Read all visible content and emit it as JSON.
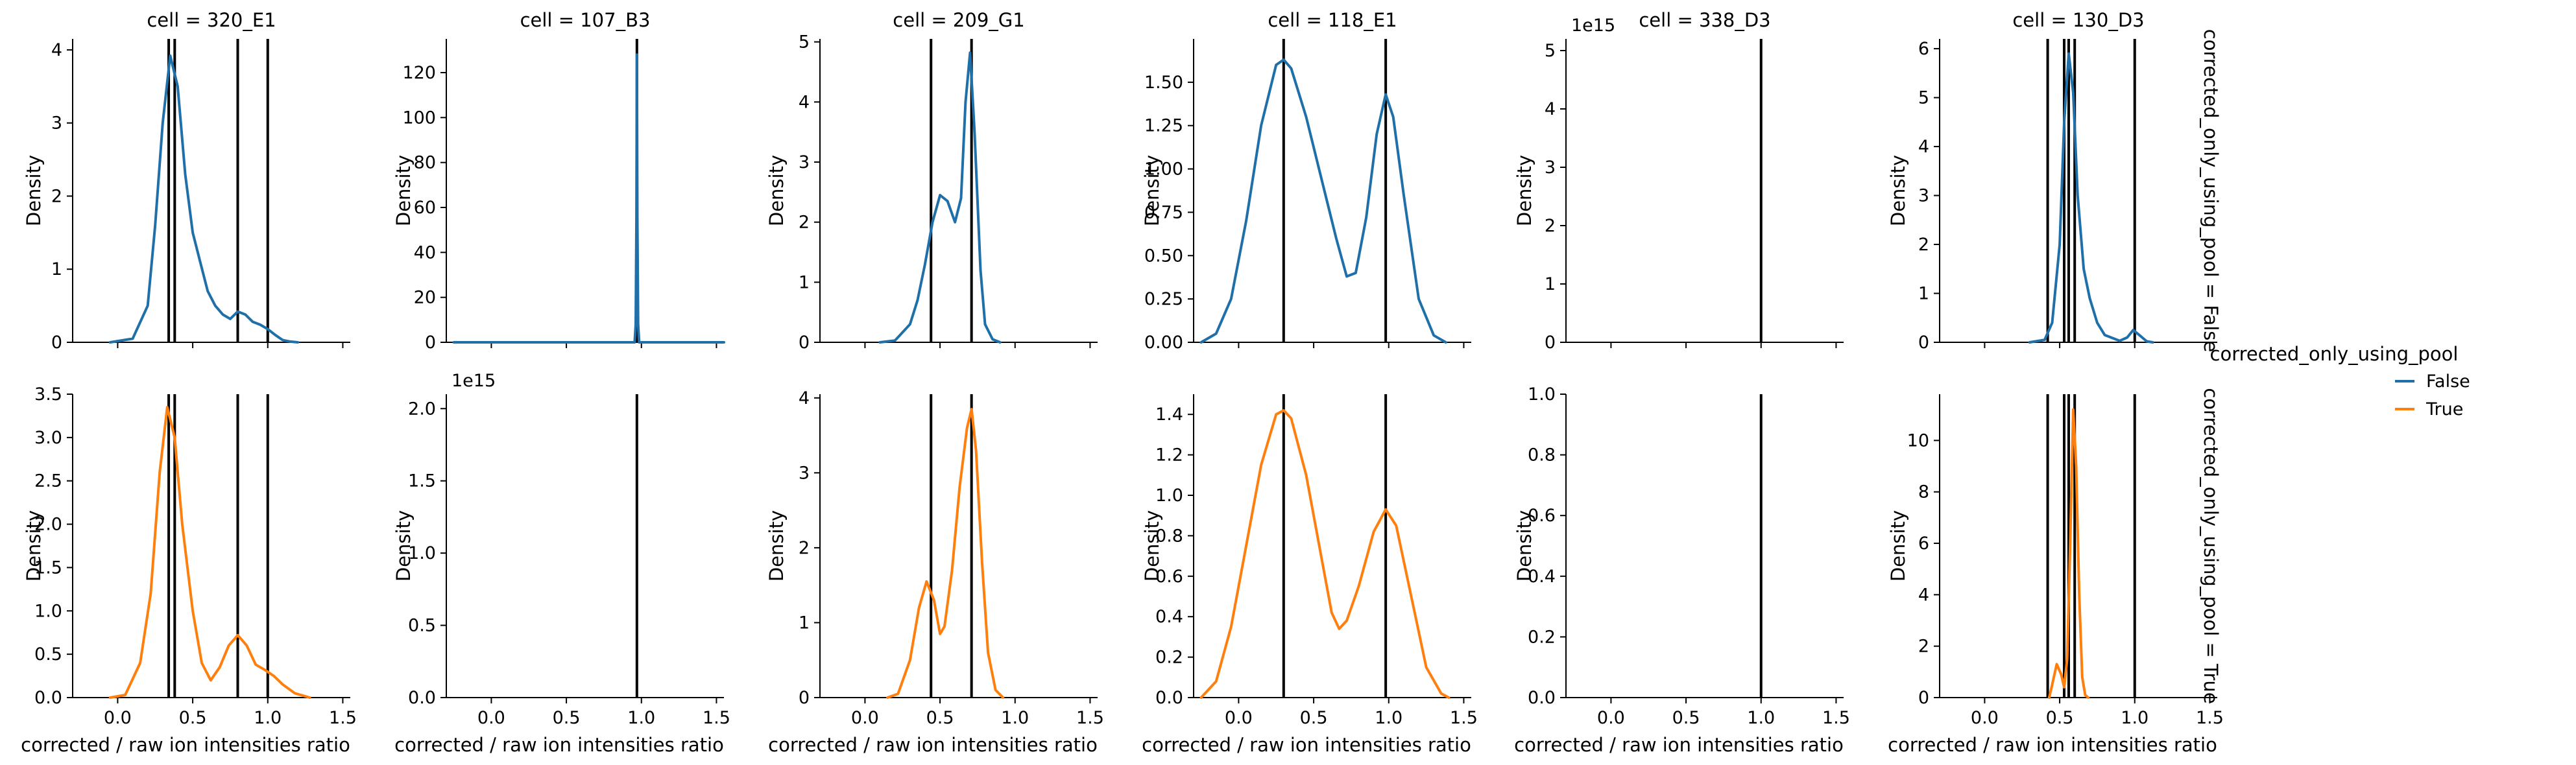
{
  "chart_data": {
    "type": "kde-facet-grid",
    "xlabel": "corrected / raw ion intensities ratio",
    "ylabel": "Density",
    "xlim": [
      -0.3,
      1.55
    ],
    "x_ticks": [
      0.0,
      0.5,
      1.0,
      1.5
    ],
    "x_tick_labels": [
      "0.0",
      "0.5",
      "1.0",
      "1.5"
    ],
    "row_labels": [
      "corrected_only_using_pool = False",
      "corrected_only_using_pool = True"
    ],
    "legend": {
      "title": "corrected_only_using_pool",
      "entries": [
        {
          "label": "False",
          "color": "#1f6fa8"
        },
        {
          "label": "True",
          "color": "#ff7f0e"
        }
      ]
    },
    "colors": {
      "False": "#1f6fa8",
      "True": "#ff7f0e",
      "vline": "#000000"
    },
    "panels": [
      {
        "row": 0,
        "col": 0,
        "title": "cell = 320_E1",
        "series": "False",
        "ylim": [
          0,
          4.15
        ],
        "y_ticks": [
          0,
          1,
          2,
          3,
          4
        ],
        "y_tick_labels": [
          "0",
          "1",
          "2",
          "3",
          "4"
        ],
        "vlines": [
          0.34,
          0.38,
          0.8,
          1.0
        ],
        "kde": [
          [
            -0.05,
            0
          ],
          [
            0.1,
            0.05
          ],
          [
            0.2,
            0.5
          ],
          [
            0.25,
            1.6
          ],
          [
            0.3,
            3.0
          ],
          [
            0.35,
            3.92
          ],
          [
            0.4,
            3.5
          ],
          [
            0.45,
            2.3
          ],
          [
            0.5,
            1.5
          ],
          [
            0.55,
            1.1
          ],
          [
            0.6,
            0.7
          ],
          [
            0.65,
            0.5
          ],
          [
            0.7,
            0.38
          ],
          [
            0.75,
            0.32
          ],
          [
            0.8,
            0.42
          ],
          [
            0.85,
            0.38
          ],
          [
            0.9,
            0.28
          ],
          [
            0.95,
            0.24
          ],
          [
            1.0,
            0.18
          ],
          [
            1.05,
            0.1
          ],
          [
            1.1,
            0.03
          ],
          [
            1.15,
            0.01
          ],
          [
            1.2,
            0
          ]
        ]
      },
      {
        "row": 0,
        "col": 1,
        "title": "cell = 107_B3",
        "series": "False",
        "ylim": [
          0,
          135
        ],
        "y_ticks": [
          0,
          20,
          40,
          60,
          80,
          100,
          120
        ],
        "y_tick_labels": [
          "0",
          "20",
          "40",
          "60",
          "80",
          "100",
          "120"
        ],
        "vlines": [
          0.97
        ],
        "kde": [
          [
            -0.25,
            0
          ],
          [
            0.955,
            0
          ],
          [
            0.962,
            8
          ],
          [
            0.967,
            55
          ],
          [
            0.97,
            128
          ],
          [
            0.973,
            55
          ],
          [
            0.978,
            8
          ],
          [
            0.985,
            0
          ],
          [
            1.55,
            0
          ]
        ]
      },
      {
        "row": 0,
        "col": 2,
        "title": "cell = 209_G1",
        "series": "False",
        "ylim": [
          0,
          5.05
        ],
        "y_ticks": [
          0,
          1,
          2,
          3,
          4,
          5
        ],
        "y_tick_labels": [
          "0",
          "1",
          "2",
          "3",
          "4",
          "5"
        ],
        "vlines": [
          0.44,
          0.71
        ],
        "kde": [
          [
            0.1,
            0
          ],
          [
            0.2,
            0.03
          ],
          [
            0.3,
            0.3
          ],
          [
            0.35,
            0.7
          ],
          [
            0.4,
            1.3
          ],
          [
            0.45,
            2.0
          ],
          [
            0.5,
            2.45
          ],
          [
            0.55,
            2.35
          ],
          [
            0.6,
            2.0
          ],
          [
            0.64,
            2.4
          ],
          [
            0.67,
            4.0
          ],
          [
            0.7,
            4.82
          ],
          [
            0.73,
            3.5
          ],
          [
            0.77,
            1.2
          ],
          [
            0.8,
            0.3
          ],
          [
            0.85,
            0.05
          ],
          [
            0.9,
            0
          ]
        ]
      },
      {
        "row": 0,
        "col": 3,
        "title": "cell = 118_E1",
        "series": "False",
        "ylim": [
          0,
          1.75
        ],
        "y_ticks": [
          0,
          0.25,
          0.5,
          0.75,
          1.0,
          1.25,
          1.5
        ],
        "y_tick_labels": [
          "0.00",
          "0.25",
          "0.50",
          "0.75",
          "1.00",
          "1.25",
          "1.50"
        ],
        "vlines": [
          0.3,
          0.98
        ],
        "kde": [
          [
            -0.25,
            0
          ],
          [
            -0.15,
            0.05
          ],
          [
            -0.05,
            0.25
          ],
          [
            0.05,
            0.7
          ],
          [
            0.15,
            1.25
          ],
          [
            0.25,
            1.6
          ],
          [
            0.3,
            1.63
          ],
          [
            0.35,
            1.58
          ],
          [
            0.45,
            1.3
          ],
          [
            0.55,
            0.95
          ],
          [
            0.65,
            0.6
          ],
          [
            0.72,
            0.38
          ],
          [
            0.78,
            0.4
          ],
          [
            0.85,
            0.72
          ],
          [
            0.92,
            1.2
          ],
          [
            0.98,
            1.43
          ],
          [
            1.03,
            1.3
          ],
          [
            1.1,
            0.85
          ],
          [
            1.2,
            0.25
          ],
          [
            1.3,
            0.04
          ],
          [
            1.38,
            0
          ]
        ]
      },
      {
        "row": 0,
        "col": 4,
        "title": "cell = 338_D3",
        "series": "False",
        "ylim": [
          0,
          5.2
        ],
        "y_ticks": [
          0,
          1,
          2,
          3,
          4,
          5
        ],
        "y_tick_labels": [
          "0",
          "1",
          "2",
          "3",
          "4",
          "5"
        ],
        "offset_label": "1e15",
        "vlines": [
          1.0
        ],
        "kde": []
      },
      {
        "row": 0,
        "col": 5,
        "title": "cell = 130_D3",
        "series": "False",
        "ylim": [
          0,
          6.2
        ],
        "y_ticks": [
          0,
          1,
          2,
          3,
          4,
          5,
          6
        ],
        "y_tick_labels": [
          "0",
          "1",
          "2",
          "3",
          "4",
          "5",
          "6"
        ],
        "vlines": [
          0.42,
          0.53,
          0.56,
          0.6,
          1.0
        ],
        "kde": [
          [
            0.3,
            0
          ],
          [
            0.4,
            0.05
          ],
          [
            0.45,
            0.4
          ],
          [
            0.5,
            2.0
          ],
          [
            0.53,
            4.5
          ],
          [
            0.56,
            5.9
          ],
          [
            0.59,
            5.1
          ],
          [
            0.62,
            3.0
          ],
          [
            0.66,
            1.5
          ],
          [
            0.7,
            0.9
          ],
          [
            0.75,
            0.4
          ],
          [
            0.8,
            0.15
          ],
          [
            0.9,
            0.03
          ],
          [
            0.95,
            0.1
          ],
          [
            0.99,
            0.25
          ],
          [
            1.03,
            0.15
          ],
          [
            1.08,
            0.02
          ],
          [
            1.12,
            0
          ]
        ]
      },
      {
        "row": 1,
        "col": 0,
        "title": "",
        "series": "True",
        "ylim": [
          0,
          3.5
        ],
        "y_ticks": [
          0,
          0.5,
          1.0,
          1.5,
          2.0,
          2.5,
          3.0,
          3.5
        ],
        "y_tick_labels": [
          "0.0",
          "0.5",
          "1.0",
          "1.5",
          "2.0",
          "2.5",
          "3.0",
          "3.5"
        ],
        "vlines": [
          0.34,
          0.38,
          0.8,
          1.0
        ],
        "kde": [
          [
            -0.05,
            0
          ],
          [
            0.05,
            0.03
          ],
          [
            0.15,
            0.4
          ],
          [
            0.22,
            1.2
          ],
          [
            0.28,
            2.6
          ],
          [
            0.33,
            3.35
          ],
          [
            0.38,
            3.0
          ],
          [
            0.43,
            2.0
          ],
          [
            0.5,
            1.0
          ],
          [
            0.56,
            0.4
          ],
          [
            0.62,
            0.2
          ],
          [
            0.68,
            0.35
          ],
          [
            0.74,
            0.6
          ],
          [
            0.8,
            0.72
          ],
          [
            0.86,
            0.6
          ],
          [
            0.92,
            0.38
          ],
          [
            0.98,
            0.32
          ],
          [
            1.04,
            0.25
          ],
          [
            1.1,
            0.15
          ],
          [
            1.18,
            0.05
          ],
          [
            1.28,
            0
          ]
        ]
      },
      {
        "row": 1,
        "col": 1,
        "title": "",
        "series": "True",
        "ylim": [
          0,
          2.1
        ],
        "y_ticks": [
          0,
          0.5,
          1.0,
          1.5,
          2.0
        ],
        "y_tick_labels": [
          "0.0",
          "0.5",
          "1.0",
          "1.5",
          "2.0"
        ],
        "offset_label": "1e15",
        "vlines": [
          0.97
        ],
        "kde": []
      },
      {
        "row": 1,
        "col": 2,
        "title": "",
        "series": "True",
        "ylim": [
          0,
          4.05
        ],
        "y_ticks": [
          0,
          1,
          2,
          3,
          4
        ],
        "y_tick_labels": [
          "0",
          "1",
          "2",
          "3",
          "4"
        ],
        "vlines": [
          0.44,
          0.71
        ],
        "kde": [
          [
            0.15,
            0
          ],
          [
            0.22,
            0.05
          ],
          [
            0.3,
            0.5
          ],
          [
            0.36,
            1.2
          ],
          [
            0.41,
            1.55
          ],
          [
            0.46,
            1.3
          ],
          [
            0.5,
            0.85
          ],
          [
            0.53,
            0.95
          ],
          [
            0.58,
            1.7
          ],
          [
            0.63,
            2.8
          ],
          [
            0.68,
            3.6
          ],
          [
            0.71,
            3.85
          ],
          [
            0.74,
            3.3
          ],
          [
            0.78,
            1.8
          ],
          [
            0.82,
            0.6
          ],
          [
            0.87,
            0.1
          ],
          [
            0.92,
            0
          ]
        ]
      },
      {
        "row": 1,
        "col": 3,
        "title": "",
        "series": "True",
        "ylim": [
          0,
          1.5
        ],
        "y_ticks": [
          0,
          0.2,
          0.4,
          0.6,
          0.8,
          1.0,
          1.2,
          1.4
        ],
        "y_tick_labels": [
          "0.0",
          "0.2",
          "0.4",
          "0.6",
          "0.8",
          "1.0",
          "1.2",
          "1.4"
        ],
        "vlines": [
          0.3,
          0.98
        ],
        "kde": [
          [
            -0.25,
            0
          ],
          [
            -0.15,
            0.08
          ],
          [
            -0.05,
            0.35
          ],
          [
            0.05,
            0.75
          ],
          [
            0.15,
            1.15
          ],
          [
            0.25,
            1.4
          ],
          [
            0.3,
            1.42
          ],
          [
            0.35,
            1.38
          ],
          [
            0.45,
            1.1
          ],
          [
            0.55,
            0.7
          ],
          [
            0.62,
            0.42
          ],
          [
            0.67,
            0.34
          ],
          [
            0.72,
            0.38
          ],
          [
            0.8,
            0.55
          ],
          [
            0.9,
            0.82
          ],
          [
            0.98,
            0.93
          ],
          [
            1.05,
            0.85
          ],
          [
            1.15,
            0.5
          ],
          [
            1.25,
            0.15
          ],
          [
            1.35,
            0.02
          ],
          [
            1.4,
            0
          ]
        ]
      },
      {
        "row": 1,
        "col": 4,
        "title": "",
        "series": "True",
        "ylim": [
          0,
          1.0
        ],
        "y_ticks": [
          0,
          0.2,
          0.4,
          0.6,
          0.8,
          1.0
        ],
        "y_tick_labels": [
          "0.0",
          "0.2",
          "0.4",
          "0.6",
          "0.8",
          "1.0"
        ],
        "vlines": [
          1.0
        ],
        "kde": []
      },
      {
        "row": 1,
        "col": 5,
        "title": "",
        "series": "True",
        "ylim": [
          0,
          11.8
        ],
        "y_ticks": [
          0,
          2,
          4,
          6,
          8,
          10
        ],
        "y_tick_labels": [
          "0",
          "2",
          "4",
          "6",
          "8",
          "10"
        ],
        "vlines": [
          0.42,
          0.53,
          0.56,
          0.6,
          1.0
        ],
        "kde": [
          [
            0.43,
            0
          ],
          [
            0.45,
            0.5
          ],
          [
            0.48,
            1.3
          ],
          [
            0.51,
            0.9
          ],
          [
            0.53,
            0.4
          ],
          [
            0.55,
            1.5
          ],
          [
            0.57,
            6.0
          ],
          [
            0.59,
            11.2
          ],
          [
            0.61,
            9.0
          ],
          [
            0.63,
            4.0
          ],
          [
            0.65,
            0.8
          ],
          [
            0.67,
            0.1
          ],
          [
            0.69,
            0
          ]
        ]
      }
    ]
  }
}
